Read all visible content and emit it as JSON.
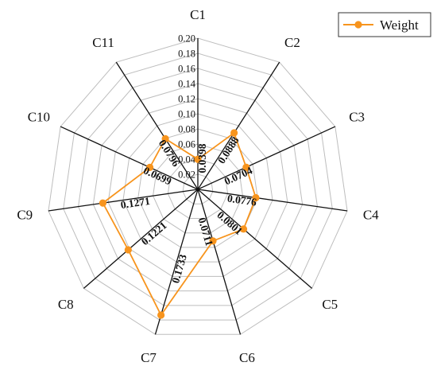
{
  "chart_data": {
    "type": "radar",
    "categories": [
      "C1",
      "C2",
      "C3",
      "C4",
      "C5",
      "C6",
      "C7",
      "C8",
      "C9",
      "C10",
      "C11"
    ],
    "series": [
      {
        "name": "Weight",
        "values": [
          0.0398,
          0.0888,
          0.0704,
          0.0776,
          0.0801,
          0.0711,
          0.1733,
          0.1221,
          0.1271,
          0.0699,
          0.0796
        ],
        "value_labels": [
          "0.0398",
          "0.0888",
          "0.0704",
          "0.0776",
          "0.0801",
          "0.0711",
          "0.1733",
          "0.1221",
          "0.1271",
          "0.0699",
          "0.0796"
        ]
      }
    ],
    "rlim": [
      0,
      0.2
    ],
    "tick_labels": [
      "0.02",
      "0.04",
      "0.06",
      "0.08",
      "0.10",
      "0.12",
      "0.14",
      "0.16",
      "0.18",
      "0.20"
    ],
    "tick_values": [
      0.02,
      0.04,
      0.06,
      0.08,
      0.1,
      0.12,
      0.14,
      0.16,
      0.18,
      0.2
    ],
    "grid": true,
    "legend": "top-right",
    "series_color": "#f7941d",
    "spoke_color": "#111111",
    "grid_color": "#bdbdbd"
  }
}
